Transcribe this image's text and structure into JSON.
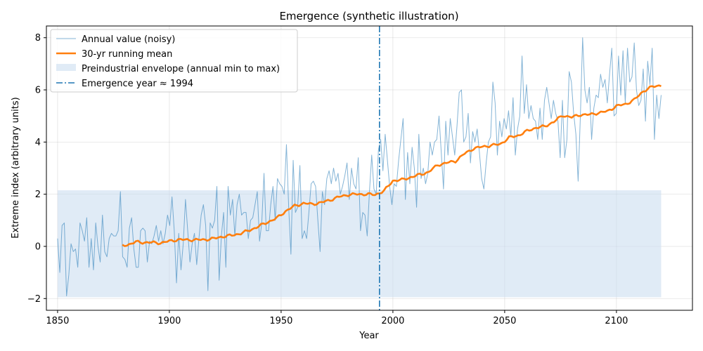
{
  "chart_data": {
    "type": "line",
    "title": "Emergence (synthetic illustration)",
    "xlabel": "Year",
    "ylabel": "Extreme index (arbitrary units)",
    "xlim": [
      1845,
      2134
    ],
    "ylim": [
      -2.45,
      8.45
    ],
    "grid": true,
    "legend_position": "top-left",
    "x_ticks": [
      1850,
      1900,
      1950,
      2000,
      2050,
      2100
    ],
    "y_ticks": [
      -2,
      0,
      2,
      4,
      6,
      8
    ],
    "colors": {
      "noisy": "#1f77b4",
      "mean": "#ff7f0e",
      "envelope": "#c6dbef",
      "emergence": "#1f77b4",
      "grid": "#b0b0b0"
    },
    "legend": [
      {
        "label": "Annual value (noisy)",
        "style": "thin-line",
        "color": "#1f77b4"
      },
      {
        "label": "30-yr running mean",
        "style": "thick-line",
        "color": "#ff7f0e"
      },
      {
        "label": "Preindustrial envelope (annual min to max)",
        "style": "patch",
        "color": "#c6dbef"
      },
      {
        "label": "Emergence year ≈ 1994",
        "style": "dashdot-line",
        "color": "#1f77b4"
      }
    ],
    "envelope": {
      "x_start": 1850,
      "x_end": 2120,
      "y_min": -1.95,
      "y_max": 2.15
    },
    "emergence_year": 1994,
    "series": [
      {
        "name": "Annual value (noisy)",
        "x_start": 1850,
        "x_end": 2120,
        "anchor_values": [
          0.3,
          -1.0,
          0.8,
          0.9,
          -1.9,
          -1.1,
          0.1,
          -0.2,
          -0.1,
          -0.8,
          0.9,
          0.6,
          0.2,
          1.1,
          -0.8,
          0.3,
          -0.9,
          0.9,
          0.0,
          -0.6,
          1.2,
          -0.2,
          -0.4,
          0.3,
          0.5,
          0.4,
          0.4,
          0.6,
          2.1,
          -0.4,
          -0.5,
          -0.8,
          0.7,
          1.1,
          -0.1,
          -0.8,
          -0.8,
          0.6,
          0.7,
          0.6,
          -0.6,
          0.2,
          0.1,
          0.4,
          0.8,
          0.2,
          0.6,
          0.1,
          0.5,
          1.2,
          0.8,
          1.9,
          0.6,
          -1.4,
          0.5,
          -0.9,
          0.1,
          1.8,
          0.6,
          -0.6,
          0.1,
          0.5,
          -0.7,
          0.3,
          1.2,
          1.6,
          0.8,
          -1.7,
          0.9,
          0.7,
          1.0,
          2.3,
          -1.3,
          0.4,
          1.3,
          -0.8,
          2.3,
          1.2,
          1.8,
          0.4,
          1.6,
          2.0,
          1.2,
          1.3,
          1.3,
          0.3,
          1.0,
          1.1,
          1.6,
          2.1,
          0.2,
          0.9,
          2.8,
          0.6,
          0.6,
          1.6,
          2.3,
          1.0,
          2.6,
          2.4,
          2.3,
          2.0,
          3.9,
          1.5,
          -0.3,
          3.3,
          1.3,
          1.5,
          3.1,
          0.3,
          0.6,
          0.3,
          1.3,
          2.4,
          2.5,
          2.3,
          1.0,
          -0.2,
          2.1,
          1.6,
          2.6,
          2.9,
          2.4,
          3.0,
          2.5,
          2.8,
          2.0,
          2.3,
          2.7,
          3.2,
          1.8,
          3.0,
          2.4,
          2.2,
          3.4,
          0.6,
          1.3,
          1.2,
          0.4,
          2.1,
          3.5,
          2.2,
          2.0,
          3.7,
          4.1,
          2.9,
          4.3,
          3.3,
          2.3,
          1.6,
          2.4,
          2.3,
          3.3,
          4.1,
          4.9,
          1.8,
          3.6,
          2.4,
          3.8,
          3.0,
          1.5,
          4.3,
          2.6,
          3.0,
          2.4,
          2.8,
          4.0,
          3.5,
          4.0,
          4.1,
          5.0,
          3.6,
          2.2,
          4.8,
          3.5,
          4.9,
          4.2,
          3.5,
          4.6,
          5.9,
          6.0,
          4.0,
          4.2,
          5.1,
          3.2,
          4.4,
          4.0,
          4.5,
          3.6,
          2.6,
          2.2,
          3.2,
          4.0,
          4.2,
          6.3,
          5.5,
          3.5,
          4.8,
          4.2,
          4.9,
          4.5,
          5.2,
          4.2,
          5.7,
          3.5,
          4.5,
          5.0,
          7.3,
          5.1,
          6.2,
          4.9,
          5.4,
          4.9,
          4.8,
          4.1,
          5.3,
          4.1,
          5.6,
          6.1,
          5.5,
          4.9,
          5.6,
          5.1,
          4.8,
          3.4,
          5.6,
          3.4,
          4.1,
          6.7,
          6.3,
          5.1,
          4.3,
          2.5,
          5.0,
          8.0,
          6.0,
          5.5,
          6.1,
          4.1,
          5.3,
          5.8,
          5.7,
          6.6,
          6.1,
          6.4,
          5.5,
          6.6,
          7.6,
          5.0,
          5.1,
          7.3,
          5.8,
          7.5,
          5.5,
          7.6,
          6.3,
          6.5,
          7.8,
          6.0,
          5.4,
          5.6,
          6.8,
          4.8,
          7.1,
          6.2,
          7.6,
          4.1,
          5.8,
          4.9,
          5.8
        ]
      },
      {
        "name": "30-yr running mean",
        "x_start": 1879,
        "x_end": 2120,
        "anchor_x": [
          1879,
          1882,
          1885,
          1888,
          1892,
          1896,
          1900,
          1904,
          1908,
          1912,
          1916,
          1920,
          1924,
          1928,
          1932,
          1936,
          1940,
          1944,
          1948,
          1952,
          1956,
          1960,
          1964,
          1968,
          1972,
          1976,
          1980,
          1984,
          1988,
          1992,
          1996,
          2000,
          2004,
          2008,
          2012,
          2016,
          2020,
          2024,
          2028,
          2032,
          2036,
          2040,
          2044,
          2048,
          2052,
          2056,
          2060,
          2064,
          2068,
          2072,
          2076,
          2080,
          2084,
          2088,
          2092,
          2096,
          2100,
          2104,
          2108,
          2112,
          2116,
          2120
        ],
        "anchor_values": [
          0.02,
          0.08,
          0.17,
          0.15,
          0.15,
          0.13,
          0.2,
          0.26,
          0.25,
          0.25,
          0.26,
          0.3,
          0.38,
          0.42,
          0.5,
          0.62,
          0.77,
          0.93,
          1.08,
          1.35,
          1.55,
          1.65,
          1.62,
          1.68,
          1.78,
          1.9,
          1.98,
          2.0,
          2.0,
          1.98,
          2.12,
          2.52,
          2.55,
          2.65,
          2.75,
          2.85,
          3.12,
          3.2,
          3.27,
          3.55,
          3.75,
          3.82,
          3.87,
          3.92,
          4.17,
          4.25,
          4.42,
          4.55,
          4.6,
          4.78,
          5.02,
          4.95,
          5.05,
          5.05,
          5.12,
          5.18,
          5.38,
          5.45,
          5.62,
          5.95,
          6.12,
          6.18
        ]
      }
    ]
  }
}
